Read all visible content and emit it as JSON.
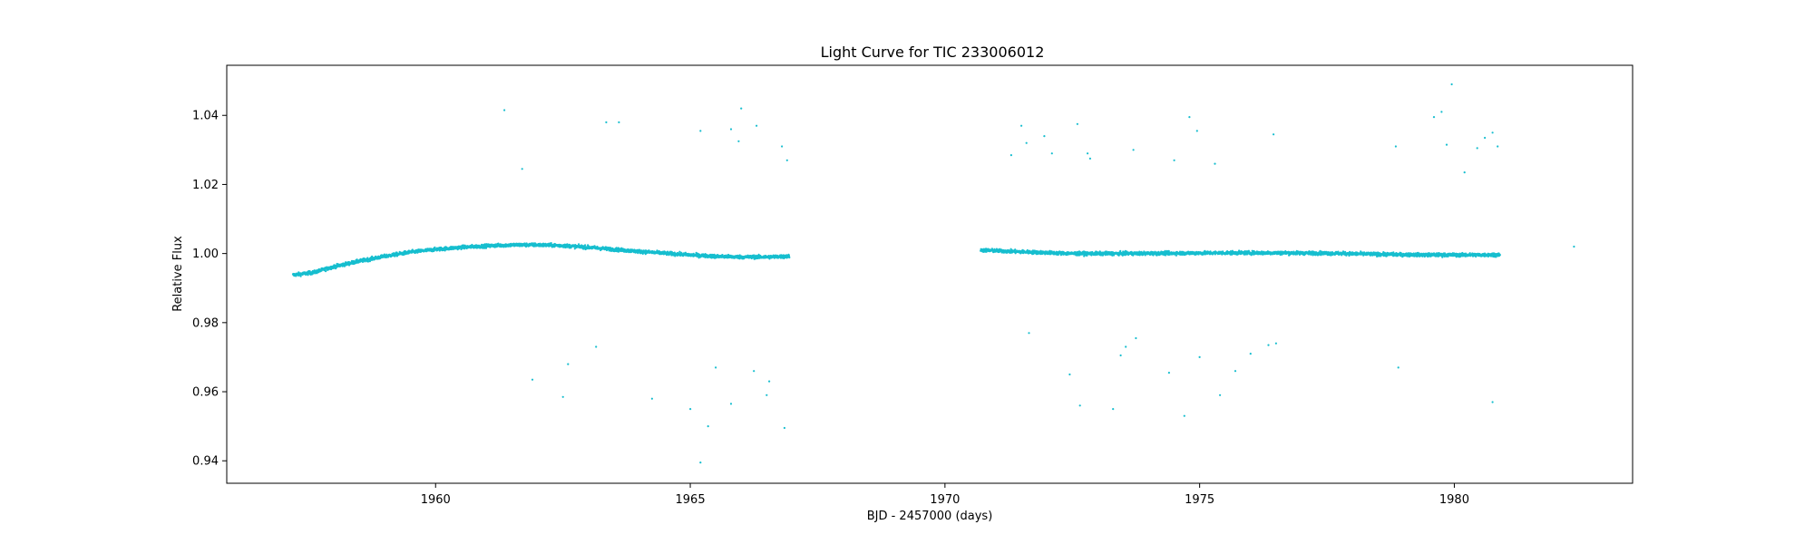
{
  "chart_data": {
    "type": "scatter",
    "title": "Light Curve for TIC 233006012",
    "xlabel": "BJD - 2457000 (days)",
    "ylabel": "Relative Flux",
    "xlim": [
      1955.9,
      1983.5
    ],
    "ylim": [
      0.9335,
      1.0545
    ],
    "xticks": [
      1960,
      1965,
      1970,
      1975,
      1980
    ],
    "xtick_labels": [
      "1960",
      "1965",
      "1970",
      "1975",
      "1980"
    ],
    "yticks": [
      0.94,
      0.96,
      0.98,
      1.0,
      1.02,
      1.04
    ],
    "ytick_labels": [
      "0.94",
      "0.96",
      "0.98",
      "1.00",
      "1.02",
      "1.04"
    ],
    "grid": false,
    "marker_color": "#17becf",
    "series": [
      {
        "trend": [
          [
            1957.2,
            0.9938
          ],
          [
            1957.6,
            0.9945
          ],
          [
            1958.0,
            0.9962
          ],
          [
            1958.5,
            0.9978
          ],
          [
            1959.0,
            0.9992
          ],
          [
            1959.5,
            1.0004
          ],
          [
            1960.0,
            1.0012
          ],
          [
            1960.5,
            1.0018
          ],
          [
            1961.0,
            1.0022
          ],
          [
            1961.5,
            1.0025
          ],
          [
            1962.0,
            1.0025
          ],
          [
            1962.5,
            1.0023
          ],
          [
            1963.0,
            1.0018
          ],
          [
            1963.5,
            1.0012
          ],
          [
            1964.0,
            1.0006
          ],
          [
            1964.5,
            1.0001
          ],
          [
            1965.0,
            0.9996
          ],
          [
            1965.5,
            0.9992
          ],
          [
            1966.0,
            0.999
          ],
          [
            1966.5,
            0.999
          ],
          [
            1966.95,
            0.9992
          ],
          [
            1970.7,
            1.001
          ],
          [
            1971.5,
            1.0005
          ],
          [
            1972.5,
            1.0
          ],
          [
            1973.5,
            1.0
          ],
          [
            1974.5,
            1.0001
          ],
          [
            1975.5,
            1.0002
          ],
          [
            1976.5,
            1.0002
          ],
          [
            1977.5,
            1.0001
          ],
          [
            1978.5,
            0.9998
          ],
          [
            1979.5,
            0.9996
          ],
          [
            1980.5,
            0.9996
          ],
          [
            1980.9,
            0.9997
          ]
        ],
        "scatter_amplitude": 0.0009,
        "outliers": [
          [
            1961.35,
            1.0415
          ],
          [
            1961.7,
            1.0245
          ],
          [
            1961.9,
            0.9635
          ],
          [
            1962.5,
            0.9585
          ],
          [
            1962.6,
            0.968
          ],
          [
            1963.15,
            0.973
          ],
          [
            1963.35,
            1.038
          ],
          [
            1963.6,
            1.038
          ],
          [
            1964.25,
            0.958
          ],
          [
            1965.0,
            0.955
          ],
          [
            1965.2,
            1.0355
          ],
          [
            1965.2,
            0.9395
          ],
          [
            1965.35,
            0.95
          ],
          [
            1965.5,
            0.967
          ],
          [
            1965.8,
            0.9565
          ],
          [
            1965.8,
            1.036
          ],
          [
            1965.95,
            1.0325
          ],
          [
            1966.0,
            1.042
          ],
          [
            1966.25,
            0.966
          ],
          [
            1966.3,
            1.037
          ],
          [
            1966.5,
            0.959
          ],
          [
            1966.55,
            0.963
          ],
          [
            1966.8,
            1.031
          ],
          [
            1966.85,
            0.9495
          ],
          [
            1966.9,
            1.027
          ],
          [
            1971.3,
            1.0285
          ],
          [
            1971.5,
            1.037
          ],
          [
            1971.6,
            1.032
          ],
          [
            1971.65,
            0.977
          ],
          [
            1971.95,
            1.034
          ],
          [
            1972.1,
            1.029
          ],
          [
            1972.45,
            0.965
          ],
          [
            1972.6,
            1.0375
          ],
          [
            1972.65,
            0.956
          ],
          [
            1972.8,
            1.029
          ],
          [
            1972.85,
            1.0275
          ],
          [
            1973.3,
            0.955
          ],
          [
            1973.45,
            0.9705
          ],
          [
            1973.55,
            0.973
          ],
          [
            1973.7,
            1.03
          ],
          [
            1973.75,
            0.9755
          ],
          [
            1974.4,
            0.9655
          ],
          [
            1974.5,
            1.027
          ],
          [
            1974.7,
            0.953
          ],
          [
            1974.8,
            1.0395
          ],
          [
            1974.95,
            1.0355
          ],
          [
            1975.0,
            0.97
          ],
          [
            1975.3,
            1.026
          ],
          [
            1975.4,
            0.959
          ],
          [
            1975.7,
            0.966
          ],
          [
            1976.0,
            0.971
          ],
          [
            1976.35,
            0.9735
          ],
          [
            1976.45,
            1.0345
          ],
          [
            1976.5,
            0.974
          ],
          [
            1978.85,
            1.031
          ],
          [
            1978.9,
            0.967
          ],
          [
            1979.6,
            1.0395
          ],
          [
            1979.75,
            1.041
          ],
          [
            1979.85,
            1.0315
          ],
          [
            1979.95,
            1.049
          ],
          [
            1980.2,
            1.0235
          ],
          [
            1980.45,
            1.0305
          ],
          [
            1980.6,
            1.0335
          ],
          [
            1980.75,
            1.035
          ],
          [
            1980.75,
            0.957
          ],
          [
            1980.85,
            1.031
          ],
          [
            1982.35,
            1.002
          ]
        ]
      }
    ]
  }
}
